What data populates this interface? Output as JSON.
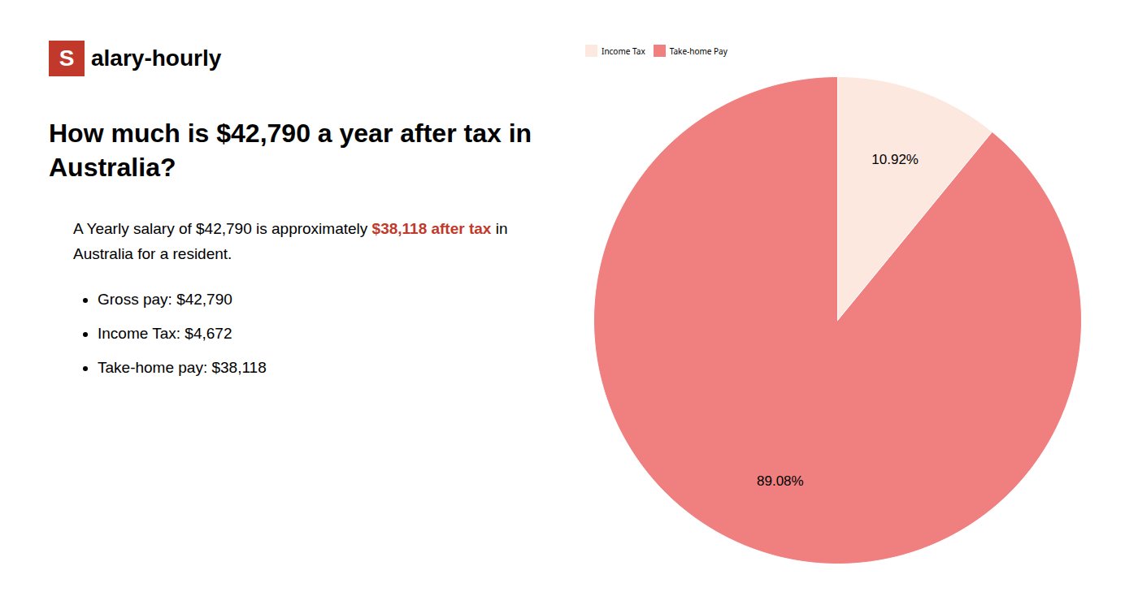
{
  "chart_data": {
    "type": "pie",
    "title": "How much is $42,790 a year after tax in Australia?",
    "categories": [
      "Income Tax",
      "Take-home Pay"
    ],
    "values": [
      10.92,
      89.08
    ],
    "value_labels": [
      "10.92%",
      "89.08%"
    ],
    "colors": [
      "#fde8e0",
      "#f08080"
    ],
    "data_labels": true,
    "legend": "top",
    "annotations": [
      [
        {
          "text": "S",
          "color": "#c0392b"
        },
        {
          "text": "alary-hourly"
        }
      ],
      [
        {
          "text": "A Yearly salary of $42,790 is approximately "
        },
        {
          "text": "$38,118 after tax",
          "color": "#c0392b"
        },
        {
          "text": " in"
        }
      ],
      [
        {
          "text": "Australia for a resident."
        }
      ]
    ],
    "bullets": [
      "Gross pay: $42,790",
      "Income Tax: $4,672",
      "Take-home pay: $38,118"
    ]
  }
}
